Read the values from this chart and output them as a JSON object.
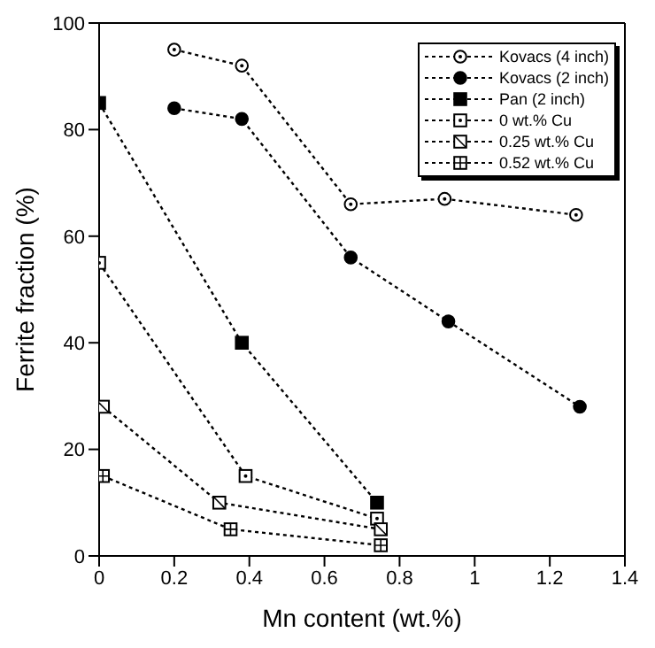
{
  "chart_data": {
    "type": "line",
    "xlabel": "Mn content (wt.%)",
    "ylabel": "Ferrite fraction (%)",
    "xlim": [
      0,
      1.4
    ],
    "xticks": [
      0,
      0.2,
      0.4,
      0.6,
      0.8,
      1,
      1.2,
      1.4
    ],
    "ylim": [
      0,
      100
    ],
    "yticks": [
      0,
      20,
      40,
      60,
      80,
      100
    ],
    "grid": false,
    "legend": "top right",
    "line_style": "dotted",
    "series": [
      {
        "name": "Kovacs (4 inch)",
        "color": "#000000",
        "marker": "circle",
        "x": [
          0.2,
          0.38,
          0.67,
          0.92,
          1.27
        ],
        "values": [
          95,
          92,
          66,
          67,
          64
        ]
      },
      {
        "name": "Kovacs (2 inch)",
        "color": "#000000",
        "marker": "circle",
        "x": [
          0.2,
          0.38,
          0.67,
          0.93,
          1.28
        ],
        "values": [
          84,
          82,
          56,
          44,
          28
        ]
      },
      {
        "name": "Pan (2 inch)",
        "color": "#000000",
        "marker": "square",
        "x": [
          0,
          0.38,
          0.74
        ],
        "values": [
          85,
          40,
          10
        ]
      },
      {
        "name": "0 wt.% Cu",
        "color": "#000000",
        "marker": "square",
        "x": [
          0,
          0.39,
          0.74
        ],
        "values": [
          55,
          15,
          7
        ]
      },
      {
        "name": "0.25 wt.% Cu",
        "color": "#000000",
        "marker": "square",
        "x": [
          0.01,
          0.32,
          0.75
        ],
        "values": [
          28,
          10,
          5
        ]
      },
      {
        "name": "0.52 wt.% Cu",
        "color": "#000000",
        "marker": "square",
        "x": [
          0.01,
          0.35,
          0.75
        ],
        "values": [
          15,
          5,
          2
        ]
      }
    ]
  }
}
